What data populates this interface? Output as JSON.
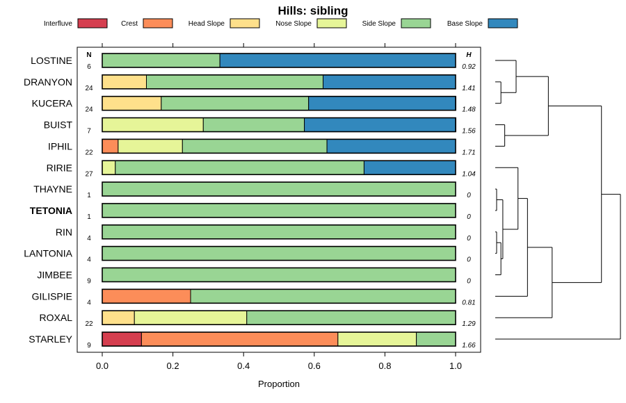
{
  "chart_data": {
    "type": "bar",
    "stacked": "proportion",
    "title": "Hills: sibling",
    "xlabel": "Proportion",
    "xlim": [
      0,
      1
    ],
    "xticks": [
      "0.0",
      "0.2",
      "0.4",
      "0.6",
      "0.8",
      "1.0"
    ],
    "xtick_values": [
      0,
      0.2,
      0.4,
      0.6,
      0.8,
      1.0
    ],
    "n_header": "N",
    "h_header": "H",
    "legend_placement": "top",
    "series": [
      {
        "name": "Interfluve",
        "color": "#d53e4f"
      },
      {
        "name": "Crest",
        "color": "#fc8d59"
      },
      {
        "name": "Head Slope",
        "color": "#fee08b"
      },
      {
        "name": "Nose Slope",
        "color": "#e6f598"
      },
      {
        "name": "Side Slope",
        "color": "#99d594"
      },
      {
        "name": "Base Slope",
        "color": "#3288bd"
      }
    ],
    "rows": [
      {
        "name": "LOSTINE",
        "bold": false,
        "n": "6",
        "h": "0.92",
        "values": [
          0,
          0,
          0,
          0,
          0.333,
          0.667
        ]
      },
      {
        "name": "DRANYON",
        "bold": false,
        "n": "24",
        "h": "1.41",
        "values": [
          0,
          0,
          0.125,
          0,
          0.5,
          0.375
        ]
      },
      {
        "name": "KUCERA",
        "bold": false,
        "n": "24",
        "h": "1.48",
        "values": [
          0,
          0,
          0.167,
          0,
          0.417,
          0.417
        ]
      },
      {
        "name": "BUIST",
        "bold": false,
        "n": "7",
        "h": "1.56",
        "values": [
          0,
          0,
          0,
          0.286,
          0.286,
          0.429
        ]
      },
      {
        "name": "IPHIL",
        "bold": false,
        "n": "22",
        "h": "1.71",
        "values": [
          0,
          0.045,
          0,
          0.182,
          0.409,
          0.364
        ]
      },
      {
        "name": "RIRIE",
        "bold": false,
        "n": "27",
        "h": "1.04",
        "values": [
          0,
          0,
          0,
          0.037,
          0.704,
          0.259
        ]
      },
      {
        "name": "THAYNE",
        "bold": false,
        "n": "1",
        "h": "0",
        "values": [
          0,
          0,
          0,
          0,
          1,
          0
        ]
      },
      {
        "name": "TETONIA",
        "bold": true,
        "n": "1",
        "h": "0",
        "values": [
          0,
          0,
          0,
          0,
          1,
          0
        ]
      },
      {
        "name": "RIN",
        "bold": false,
        "n": "4",
        "h": "0",
        "values": [
          0,
          0,
          0,
          0,
          1,
          0
        ]
      },
      {
        "name": "LANTONIA",
        "bold": false,
        "n": "4",
        "h": "0",
        "values": [
          0,
          0,
          0,
          0,
          1,
          0
        ]
      },
      {
        "name": "JIMBEE",
        "bold": false,
        "n": "9",
        "h": "0",
        "values": [
          0,
          0,
          0,
          0,
          1,
          0
        ]
      },
      {
        "name": "GILISPIE",
        "bold": false,
        "n": "4",
        "h": "0.81",
        "values": [
          0,
          0.25,
          0,
          0,
          0.75,
          0
        ]
      },
      {
        "name": "ROXAL",
        "bold": false,
        "n": "22",
        "h": "1.29",
        "values": [
          0,
          0,
          0.091,
          0.318,
          0.591,
          0
        ]
      },
      {
        "name": "STARLEY",
        "bold": false,
        "n": "9",
        "h": "1.66",
        "values": [
          0.111,
          0.556,
          0,
          0.222,
          0.111,
          0
        ]
      }
    ],
    "dendrogram": {
      "orientation": "right",
      "merges": [
        {
          "a": "DRANYON",
          "b": "KUCERA",
          "height": 0.03
        },
        {
          "a": "LOSTINE",
          "b": "M1",
          "height": 0.11
        },
        {
          "a": "BUIST",
          "b": "IPHIL",
          "height": 0.05
        },
        {
          "a": "M2",
          "b": "M3",
          "height": 0.28
        },
        {
          "a": "RIN",
          "b": "LANTONIA",
          "height": 0.0
        },
        {
          "a": "THAYNE",
          "b": "TETONIA",
          "height": 0.0
        },
        {
          "a": "M5",
          "b": "JIMBEE",
          "height": 0.03
        },
        {
          "a": "M6",
          "b": "M7",
          "height": 0.04
        },
        {
          "a": "M8",
          "b": "RIRIE",
          "height": 0.12
        },
        {
          "a": "M9",
          "b": "GILISPIE",
          "height": 0.17
        },
        {
          "a": "M10",
          "b": "ROXAL",
          "height": 0.3
        },
        {
          "a": "M4",
          "b": "M11",
          "height": 0.56
        },
        {
          "a": "M12",
          "b": "STARLEY",
          "height": 0.66
        }
      ]
    }
  }
}
